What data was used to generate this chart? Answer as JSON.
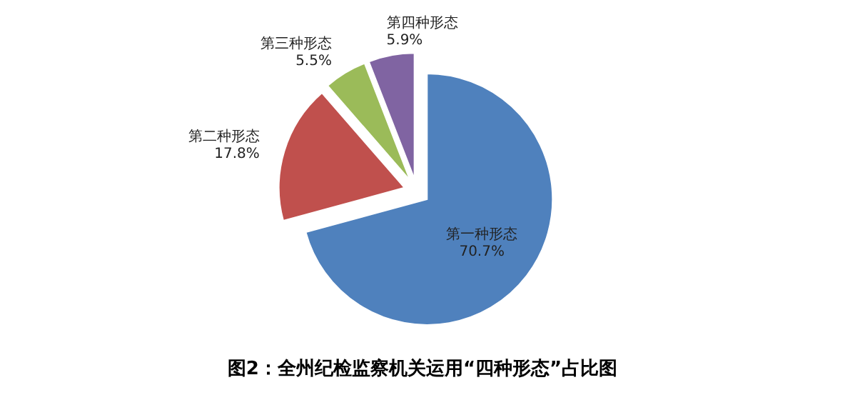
{
  "chart_data": {
    "type": "pie",
    "title": "图2：全州纪检监察机关运用“四种形态”占比图",
    "categories": [
      "第一种形态",
      "第二种形态",
      "第三种形态",
      "第四种形态"
    ],
    "values": [
      70.7,
      17.8,
      5.5,
      5.9
    ],
    "colors": [
      "#4f81bd",
      "#c0504d",
      "#9bbb59",
      "#8064a2"
    ],
    "value_labels": [
      "70.7%",
      "17.8%",
      "5.5%",
      "5.9%"
    ]
  }
}
